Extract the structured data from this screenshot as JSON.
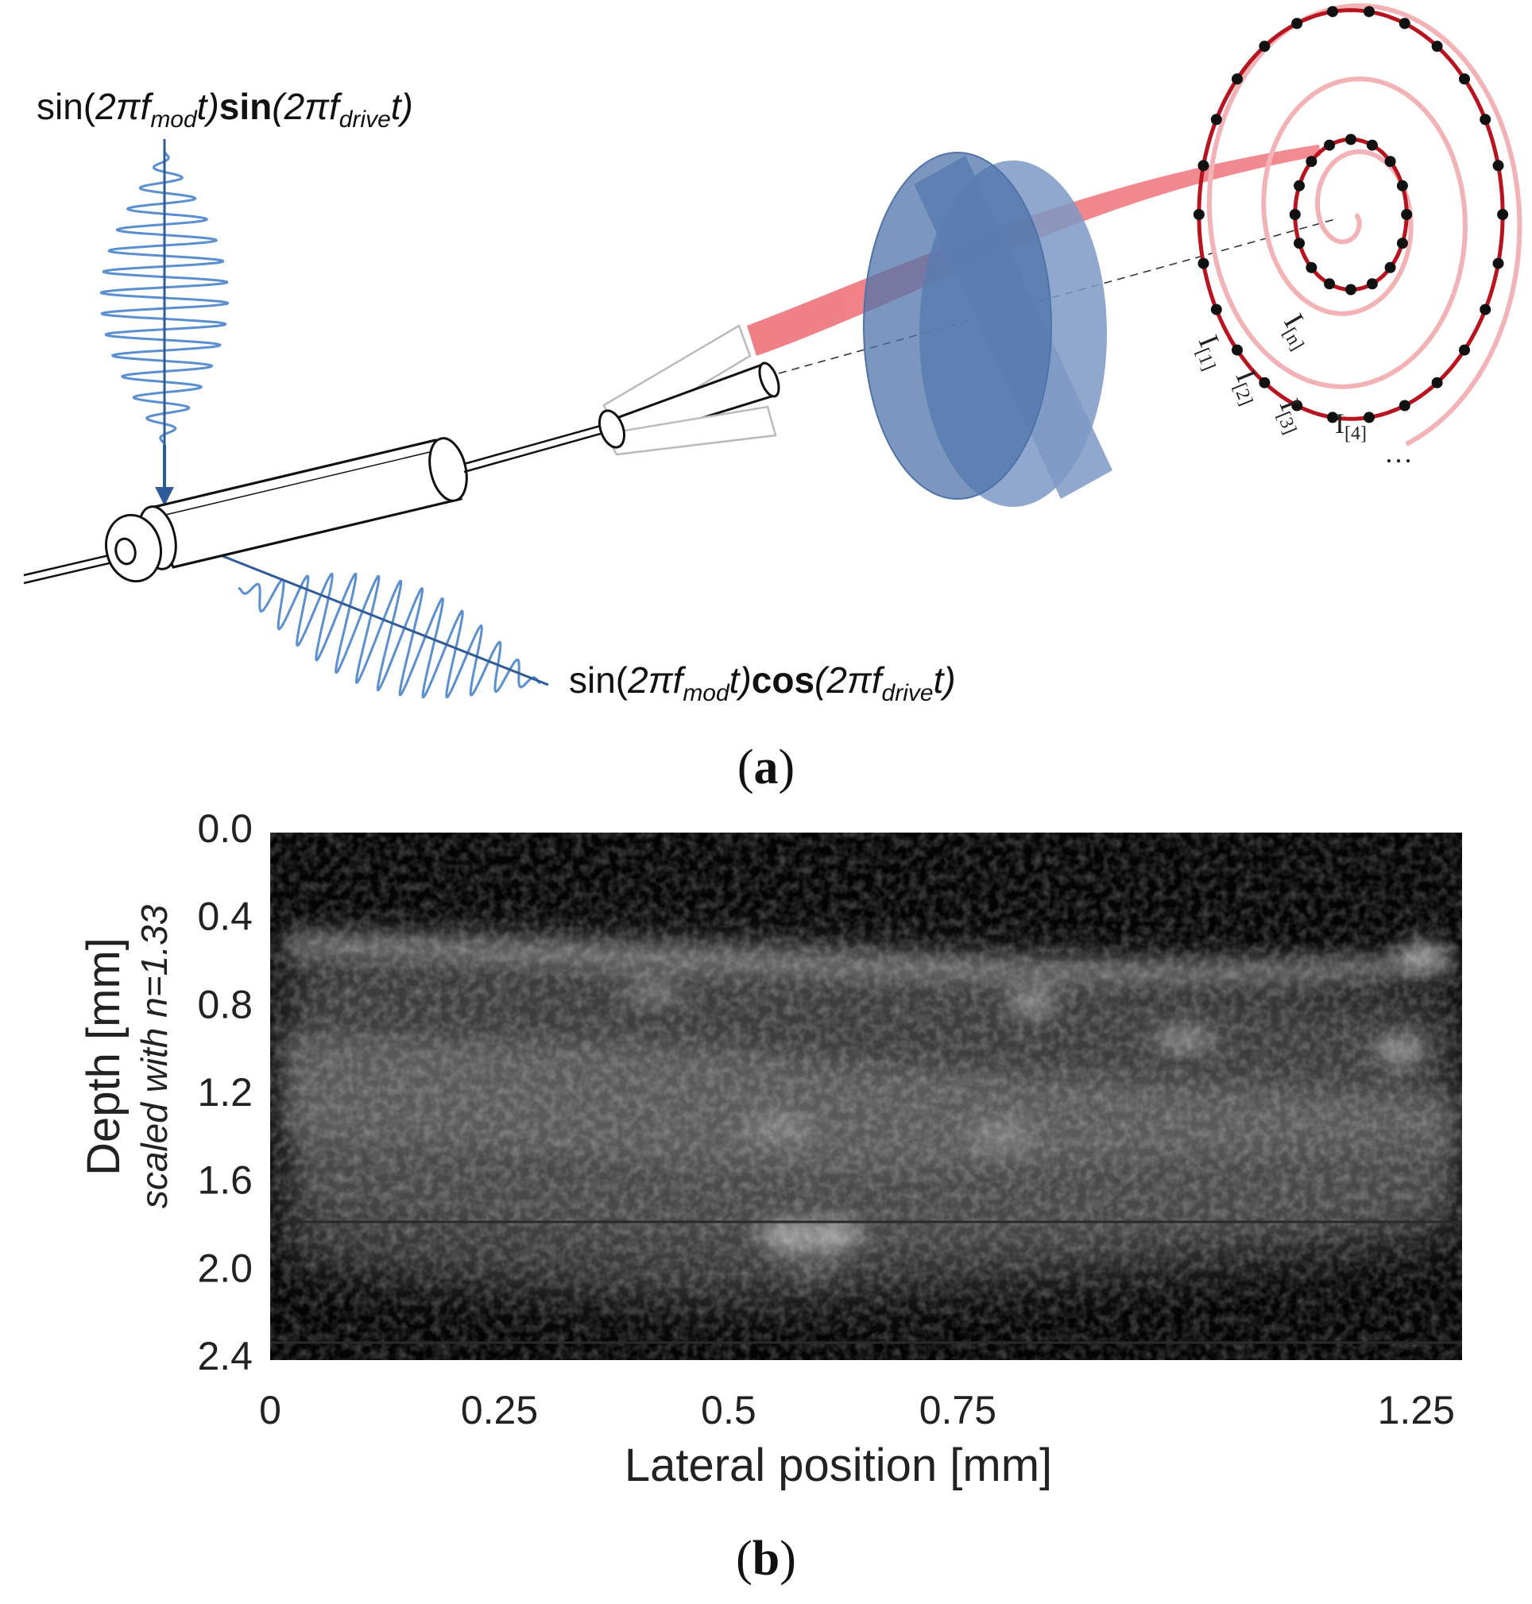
{
  "panel_a": {
    "label": "a",
    "signal_top": {
      "pre": "sin(",
      "f1_it": "2πf",
      "f1_sub": "mod",
      "f1_t": "t)",
      "fn2": "sin",
      "f2_open": "(2πf",
      "f2_sub": "drive",
      "f2_t": "t)"
    },
    "signal_bottom": {
      "pre": "sin(",
      "f1_it": "2πf",
      "f1_sub": "mod",
      "f1_t": "t)",
      "fn2": "cos",
      "f2_open": "(2πf",
      "f2_sub": "drive",
      "f2_t": "t)"
    },
    "sample_labels": [
      {
        "base": "I",
        "sub": "[1]"
      },
      {
        "base": "I",
        "sub": "[2]"
      },
      {
        "base": "I",
        "sub": "[3]"
      },
      {
        "base": "I",
        "sub": "[4]"
      }
    ],
    "sample_ellipsis": "…",
    "sample_last": {
      "base": "I",
      "sub": "[n]"
    },
    "colors": {
      "wave": "#5b8fd0",
      "arrow": "#2f5b98",
      "lens": "#4f73a9",
      "beam": "#f07f86",
      "spiral_outer": "#b8141f",
      "spiral_inner": "#f2b2b6"
    }
  },
  "panel_b": {
    "label": "b",
    "chart_data": {
      "type": "heatmap",
      "description_of_content": "",
      "xlabel": "Lateral position [mm]",
      "ylabel": "Depth [mm]",
      "ylabel_sub": "scaled with n=1.33",
      "x_ticks": [
        "0",
        "0.25",
        "0.5",
        "0.75",
        "1.25"
      ],
      "x_tick_values": [
        0,
        0.25,
        0.5,
        0.75,
        1.25
      ],
      "y_ticks": [
        "0.0",
        "0.4",
        "0.8",
        "1.2",
        "1.6",
        "2.0",
        "2.4"
      ],
      "y_tick_values": [
        0.0,
        0.4,
        0.8,
        1.2,
        1.6,
        2.0,
        2.4
      ],
      "xlim": [
        0,
        1.3
      ],
      "ylim": [
        0,
        2.4
      ],
      "grid": false,
      "colormap": "grayscale"
    }
  }
}
